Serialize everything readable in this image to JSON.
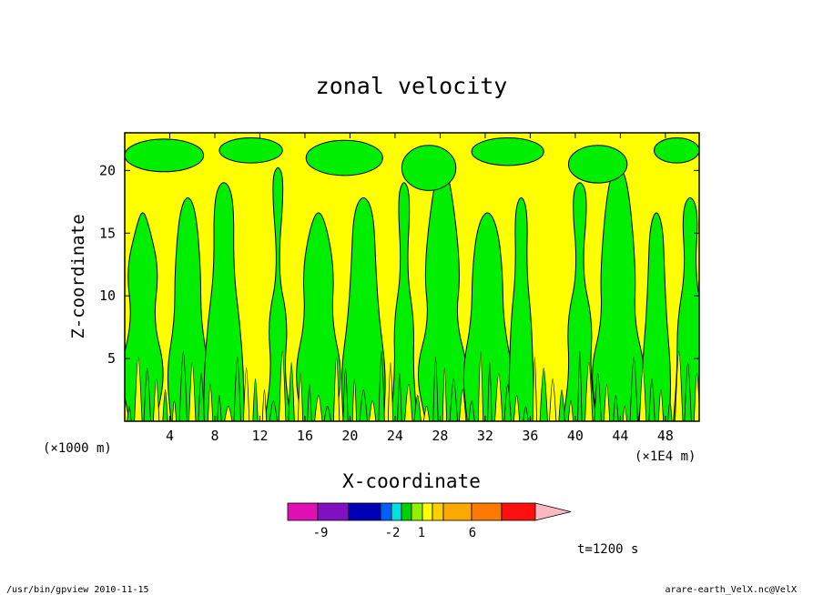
{
  "chart_data": {
    "type": "heatmap",
    "title": "zonal velocity",
    "xlabel": "X-coordinate",
    "ylabel": "Z-coordinate",
    "x_unit_left": "(×1000 m)",
    "x_unit_right": "(×1E4 m)",
    "xlim": [
      0,
      51
    ],
    "ylim": [
      0,
      23
    ],
    "x_ticks": [
      4,
      8,
      12,
      16,
      20,
      24,
      28,
      32,
      36,
      40,
      44,
      48
    ],
    "y_ticks": [
      5,
      10,
      15,
      20
    ],
    "time_label": "t=1200 s",
    "colorbar": {
      "tick_labels": [
        "-9",
        "-2",
        "1",
        "6"
      ],
      "colors": [
        "#e010b4",
        "#8010c0",
        "#0000b4",
        "#0060ff",
        "#00e0e0",
        "#00d000",
        "#90f000",
        "#ffff00",
        "#ffd000",
        "#ffa800",
        "#ff7800",
        "#ff1010",
        "#ff7878",
        "#ffb8c0"
      ]
    },
    "dominant_colors": {
      "positive": "#ffff00",
      "negative": "#00ee00",
      "line": "#000000"
    }
  },
  "footer": {
    "left": "/usr/bin/gpview  2010-11-15",
    "right": "arare-earth_VelX.nc@VelX"
  }
}
